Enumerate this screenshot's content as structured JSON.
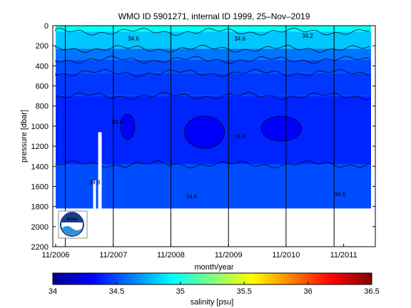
{
  "chart_data": [
    {
      "type": "heatmap",
      "title": "WMO ID 5901271, internal ID 1999, 25–Nov–2019",
      "xlabel": "month/year",
      "ylabel": "pressure [dbar]",
      "x_ticks": [
        "11/2006",
        "11/2007",
        "11/2008",
        "11/2009",
        "11/2010",
        "11/2011"
      ],
      "x_range": [
        "11/2006",
        "05/2012"
      ],
      "y_ticks": [
        0,
        200,
        400,
        600,
        800,
        1000,
        1200,
        1400,
        1600,
        1800,
        2000,
        2200
      ],
      "y_range": [
        0,
        2200
      ],
      "y_reversed": true,
      "data_bottom_pressure": 1820,
      "layers": [
        {
          "depth_top": 0,
          "depth_bottom": 60,
          "salinity": 34.95
        },
        {
          "depth_top": 60,
          "depth_bottom": 230,
          "salinity": 34.8
        },
        {
          "depth_top": 230,
          "depth_bottom": 340,
          "salinity": 34.6
        },
        {
          "depth_top": 340,
          "depth_bottom": 470,
          "salinity": 34.5
        },
        {
          "depth_top": 470,
          "depth_bottom": 700,
          "salinity": 34.45
        },
        {
          "depth_top": 700,
          "depth_bottom": 1380,
          "salinity": 34.4
        },
        {
          "depth_top": 1380,
          "depth_bottom": 1820,
          "salinity": 34.5
        }
      ],
      "minimum_patches": [
        {
          "time": "02/2008",
          "depth_top": 880,
          "depth_bottom": 1130,
          "salinity": 34.3
        },
        {
          "time": "06/2009",
          "depth_top": 900,
          "depth_bottom": 1220,
          "salinity": 34.3
        },
        {
          "time": "10/2010",
          "depth_top": 900,
          "depth_bottom": 1150,
          "salinity": 34.3
        }
      ],
      "profile_lines": [
        "01/2007",
        "11/2007",
        "11/2008",
        "11/2009",
        "11/2010",
        "09/2011"
      ],
      "contour_labels": [
        "34.4",
        "34.4",
        "34.6",
        "34.6",
        "34.6",
        "34.6",
        "34.2",
        "34.6"
      ]
    },
    {
      "type": "colorbar",
      "xlabel": "salinity [psu]",
      "range": [
        34,
        36.5
      ],
      "ticks": [
        "34",
        "34.5",
        "35",
        "35.5",
        "36",
        "36.5"
      ],
      "colormap": "jet"
    }
  ],
  "logo": {
    "text": "NOAA"
  }
}
